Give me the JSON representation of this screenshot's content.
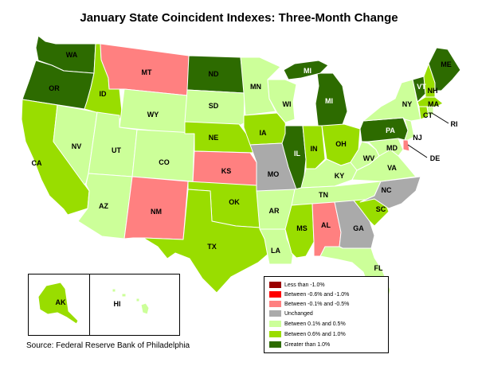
{
  "title": "January State Coincident Indexes: Three-Month Change",
  "source": "Source: Federal Reserve Bank of Philadelphia",
  "colors": {
    "lt_neg1": "#990000",
    "neg08_neg1": "#ff0000",
    "neg01_neg05": "#ff8080",
    "unchanged": "#aaaaaa",
    "p01_p05": "#ccff99",
    "p06_p1": "#99dd00",
    "gt1": "#2d6b00"
  },
  "legend": [
    {
      "key": "lt_neg1",
      "label": "Less than -1.0%"
    },
    {
      "key": "neg08_neg1",
      "label": "Between -0.6% and -1.0%"
    },
    {
      "key": "neg01_neg05",
      "label": "Between -0.1% and -0.5%"
    },
    {
      "key": "unchanged",
      "label": "Unchanged"
    },
    {
      "key": "p01_p05",
      "label": "Between 0.1% and 0.5%"
    },
    {
      "key": "p06_p1",
      "label": "Between 0.6% and 1.0%"
    },
    {
      "key": "gt1",
      "label": "Greater than 1.0%"
    }
  ],
  "states": {
    "WA": {
      "label": "WA",
      "category": "gt1"
    },
    "OR": {
      "label": "OR",
      "category": "gt1"
    },
    "CA": {
      "label": "CA",
      "category": "p06_p1"
    },
    "ID": {
      "label": "ID",
      "category": "p06_p1"
    },
    "NV": {
      "label": "NV",
      "category": "p01_p05"
    },
    "MT": {
      "label": "MT",
      "category": "neg01_neg05"
    },
    "WY": {
      "label": "WY",
      "category": "p01_p05"
    },
    "UT": {
      "label": "UT",
      "category": "p01_p05"
    },
    "AZ": {
      "label": "AZ",
      "category": "p01_p05"
    },
    "CO": {
      "label": "CO",
      "category": "p01_p05"
    },
    "NM": {
      "label": "NM",
      "category": "neg01_neg05"
    },
    "ND": {
      "label": "ND",
      "category": "gt1"
    },
    "SD": {
      "label": "SD",
      "category": "p01_p05"
    },
    "NE": {
      "label": "NE",
      "category": "p06_p1"
    },
    "KS": {
      "label": "KS",
      "category": "neg01_neg05"
    },
    "OK": {
      "label": "OK",
      "category": "p06_p1"
    },
    "TX": {
      "label": "TX",
      "category": "p06_p1"
    },
    "MN": {
      "label": "MN",
      "category": "p01_p05"
    },
    "IA": {
      "label": "IA",
      "category": "p06_p1"
    },
    "MO": {
      "label": "MO",
      "category": "unchanged"
    },
    "AR": {
      "label": "AR",
      "category": "p01_p05"
    },
    "LA": {
      "label": "LA",
      "category": "p01_p05"
    },
    "WI": {
      "label": "WI",
      "category": "p01_p05"
    },
    "IL": {
      "label": "IL",
      "category": "gt1"
    },
    "MI": {
      "label": "MI",
      "category": "gt1"
    },
    "IN": {
      "label": "IN",
      "category": "p06_p1"
    },
    "OH": {
      "label": "OH",
      "category": "p06_p1"
    },
    "KY": {
      "label": "KY",
      "category": "p01_p05"
    },
    "TN": {
      "label": "TN",
      "category": "p01_p05"
    },
    "MS": {
      "label": "MS",
      "category": "p06_p1"
    },
    "AL": {
      "label": "AL",
      "category": "neg01_neg05"
    },
    "GA": {
      "label": "GA",
      "category": "unchanged"
    },
    "FL": {
      "label": "FL",
      "category": "p01_p05"
    },
    "SC": {
      "label": "SC",
      "category": "p06_p1"
    },
    "NC": {
      "label": "NC",
      "category": "unchanged"
    },
    "VA": {
      "label": "VA",
      "category": "p01_p05"
    },
    "WV": {
      "label": "WV",
      "category": "p01_p05"
    },
    "MD": {
      "label": "MD",
      "category": "p01_p05"
    },
    "DE": {
      "label": "DE",
      "category": "neg01_neg05"
    },
    "PA": {
      "label": "PA",
      "category": "gt1"
    },
    "NJ": {
      "label": "NJ",
      "category": "p01_p05"
    },
    "NY": {
      "label": "NY",
      "category": "p01_p05"
    },
    "CT": {
      "label": "CT",
      "category": "p06_p1"
    },
    "RI": {
      "label": "RI",
      "category": "p01_p05"
    },
    "MA": {
      "label": "MA",
      "category": "p06_p1"
    },
    "VT": {
      "label": "VT",
      "category": "gt1"
    },
    "NH": {
      "label": "NH",
      "category": "p06_p1"
    },
    "ME": {
      "label": "ME",
      "category": "gt1"
    },
    "AK": {
      "label": "AK",
      "category": "p06_p1"
    },
    "HI": {
      "label": "HI",
      "category": "p01_p05"
    }
  }
}
